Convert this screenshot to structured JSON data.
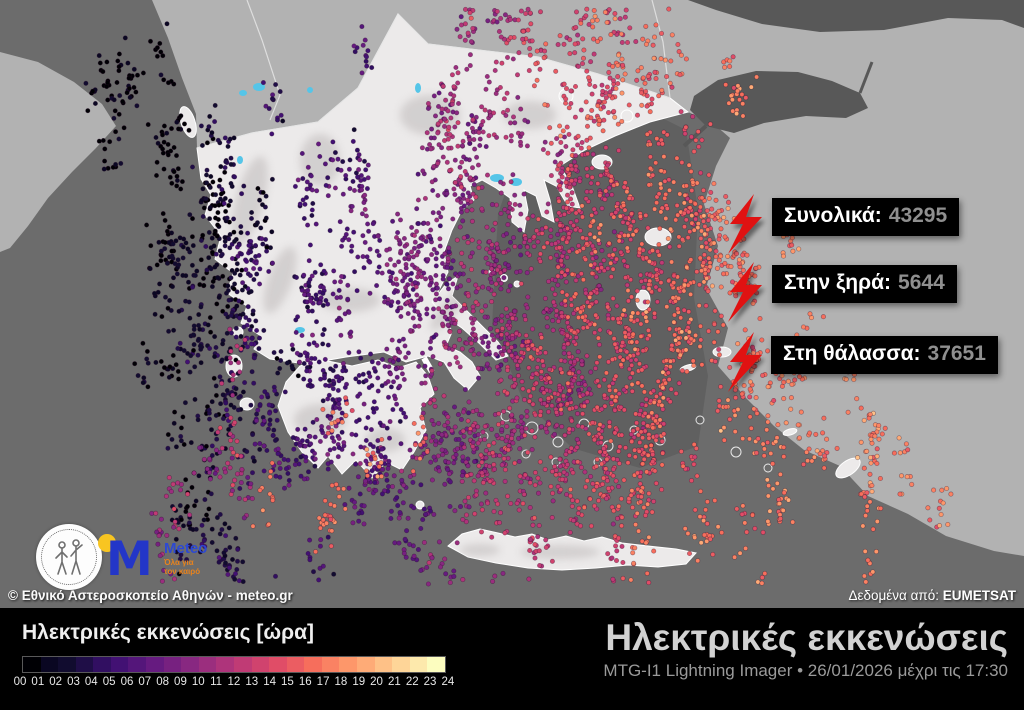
{
  "map": {
    "attribution": "© Εθνικό Αστεροσκοπείο Αθηνών - meteo.gr",
    "data_source_label": "Δεδομένα από:",
    "data_source_value": "EUMETSAT",
    "stats": [
      {
        "label": "Συνολικά:",
        "value": "43295"
      },
      {
        "label": "Στην ξηρά:",
        "value": "5644"
      },
      {
        "label": "Στη θάλασσα:",
        "value": "37651"
      }
    ],
    "colors": {
      "sea": "#6c6c6c",
      "deep_sea": "#595959",
      "neighbor_land": "#b2b2b2",
      "greece_land": "#eceaea",
      "lake": "#55c5e8",
      "border": "#e3e3e3",
      "bolt_red": "#e01212",
      "stat_value": "#8f8f8f"
    },
    "dot_style": {
      "radius": 2.2,
      "cluster_size": 13,
      "cluster_sx": 7,
      "cluster_sy": 15,
      "hour_jitter": 1.15,
      "stroke": "rgba(40,10,40,0.4)"
    },
    "dot_bands": [
      [
        0,
        150,
        28,
        95,
        50,
        60
      ],
      [
        0,
        185,
        32,
        300,
        115,
        150
      ],
      [
        1,
        205,
        30,
        330,
        110,
        150
      ],
      [
        2,
        227,
        30,
        340,
        110,
        155
      ],
      [
        3,
        252,
        32,
        345,
        115,
        160
      ],
      [
        4,
        286,
        34,
        340,
        120,
        165
      ],
      [
        5,
        320,
        34,
        335,
        125,
        170
      ],
      [
        6,
        355,
        34,
        330,
        130,
        185
      ],
      [
        7,
        390,
        34,
        330,
        135,
        205
      ],
      [
        8,
        420,
        35,
        330,
        140,
        230
      ],
      [
        9,
        450,
        35,
        325,
        145,
        260
      ],
      [
        10,
        480,
        37,
        315,
        148,
        290
      ],
      [
        11,
        510,
        37,
        305,
        150,
        320
      ],
      [
        12,
        540,
        38,
        300,
        152,
        350
      ],
      [
        13,
        572,
        38,
        295,
        152,
        360
      ],
      [
        14,
        605,
        40,
        290,
        150,
        350
      ],
      [
        15,
        640,
        42,
        300,
        145,
        320
      ],
      [
        16,
        690,
        46,
        320,
        135,
        290
      ],
      [
        17,
        762,
        58,
        380,
        108,
        250
      ],
      [
        17,
        888,
        38,
        458,
        66,
        85
      ],
      [
        16,
        652,
        42,
        195,
        75,
        120
      ],
      [
        13,
        540,
        55,
        62,
        38,
        85
      ],
      [
        16,
        648,
        36,
        70,
        38,
        60
      ],
      [
        16,
        380,
        75,
        498,
        52,
        70
      ],
      [
        12,
        255,
        85,
        500,
        58,
        60
      ],
      [
        9,
        182,
        65,
        520,
        48,
        40
      ]
    ]
  },
  "logos": {
    "noa_name": "Εθνικό Αστεροσκοπείο Αθηνών",
    "meteo_word": "Meteo",
    "meteo_tagline_1": "Όλα για",
    "meteo_tagline_2": "τον καιρό"
  },
  "legend": {
    "title": "Ηλεκτρικές εκκενώσεις [ώρα]",
    "hours": [
      "00",
      "01",
      "02",
      "03",
      "04",
      "05",
      "06",
      "07",
      "08",
      "09",
      "10",
      "11",
      "12",
      "13",
      "14",
      "15",
      "16",
      "17",
      "18",
      "19",
      "20",
      "21",
      "22",
      "23",
      "24"
    ],
    "segment_colors": [
      "#000004",
      "#0a0722",
      "#110c2f",
      "#1f0e47",
      "#310f61",
      "#421173",
      "#54167a",
      "#661b80",
      "#772180",
      "#882881",
      "#9b2e7e",
      "#ae347b",
      "#c03b75",
      "#d0436e",
      "#e04d67",
      "#eb5d62",
      "#f66e5c",
      "#fa8263",
      "#fd976a",
      "#feab77",
      "#fec187",
      "#fed598",
      "#fde9ac",
      "#fcfdbf"
    ]
  },
  "footer": {
    "title": "Ηλεκτρικές εκκενώσεις",
    "subtitle": "MTG-I1 Lightning Imager • 26/01/2026 μέχρι τις 17:30"
  }
}
